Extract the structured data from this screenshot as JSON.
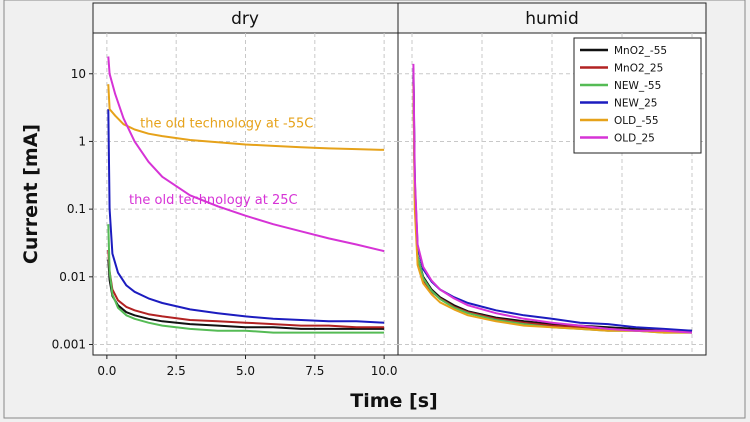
{
  "chart_data": {
    "type": "line",
    "panels": [
      {
        "title": "dry"
      },
      {
        "title": "humid"
      }
    ],
    "xlabel": "Time [s]",
    "ylabel": "Current [mA]",
    "xlim": [
      -0.5,
      10.5
    ],
    "ylim": [
      0.0007,
      40
    ],
    "yscale": "log",
    "grid": true,
    "xticks": [
      {
        "value": 0,
        "label": "0.0"
      },
      {
        "value": 2.5,
        "label": "2.5"
      },
      {
        "value": 5,
        "label": "5.0"
      },
      {
        "value": 7.5,
        "label": "7.5"
      },
      {
        "value": 10,
        "label": "10.0"
      }
    ],
    "yticks": [
      {
        "value": 10,
        "label": "10"
      },
      {
        "value": 1,
        "label": "1"
      },
      {
        "value": 0.1,
        "label": "0.1"
      },
      {
        "value": 0.01,
        "label": "0.01"
      },
      {
        "value": 0.001,
        "label": "0.001"
      }
    ],
    "legend_position": "top-right of humid panel",
    "series": [
      {
        "name": "MnO2_-55",
        "color": "#111111",
        "dry": {
          "x": [
            0.05,
            0.1,
            0.2,
            0.4,
            0.7,
            1,
            1.5,
            2,
            3,
            4,
            5,
            6,
            7,
            8,
            9,
            10
          ],
          "y": [
            0.018,
            0.009,
            0.0052,
            0.0038,
            0.003,
            0.0027,
            0.0024,
            0.0022,
            0.002,
            0.0019,
            0.0018,
            0.0018,
            0.0017,
            0.0017,
            0.0017,
            0.0017
          ]
        },
        "humid": {
          "x": [
            0.05,
            0.1,
            0.2,
            0.4,
            0.7,
            1,
            1.5,
            2,
            3,
            4,
            5,
            6,
            7,
            8,
            9,
            10
          ],
          "y": [
            9,
            0.2,
            0.02,
            0.01,
            0.0065,
            0.005,
            0.0038,
            0.0031,
            0.0025,
            0.0022,
            0.002,
            0.0019,
            0.0018,
            0.0017,
            0.0016,
            0.0016
          ]
        }
      },
      {
        "name": "MnO2_25",
        "color": "#b22222",
        "dry": {
          "x": [
            0.05,
            0.1,
            0.2,
            0.4,
            0.7,
            1,
            1.5,
            2,
            3,
            4,
            5,
            6,
            7,
            8,
            9,
            10
          ],
          "y": [
            0.025,
            0.012,
            0.0065,
            0.0045,
            0.0036,
            0.0032,
            0.0028,
            0.0026,
            0.0023,
            0.0022,
            0.0021,
            0.002,
            0.0019,
            0.0019,
            0.0018,
            0.0018
          ]
        },
        "humid": {
          "x": [
            0.05,
            0.1,
            0.2,
            0.4,
            0.7,
            1,
            1.5,
            2,
            3,
            4,
            5,
            6,
            7,
            8,
            9,
            10
          ],
          "y": [
            8,
            0.15,
            0.018,
            0.009,
            0.006,
            0.0048,
            0.0036,
            0.003,
            0.0024,
            0.0021,
            0.0019,
            0.0018,
            0.0017,
            0.0016,
            0.0016,
            0.0015
          ]
        }
      },
      {
        "name": "NEW_-55",
        "color": "#55bb55",
        "dry": {
          "x": [
            0.05,
            0.1,
            0.2,
            0.4,
            0.7,
            1,
            1.5,
            2,
            3,
            4,
            5,
            6,
            7,
            8,
            9,
            10
          ],
          "y": [
            0.06,
            0.012,
            0.0055,
            0.0035,
            0.0027,
            0.0024,
            0.0021,
            0.0019,
            0.0017,
            0.0016,
            0.0016,
            0.0015,
            0.0015,
            0.0015,
            0.0015,
            0.0015
          ]
        },
        "humid": {
          "x": [
            0.05,
            0.1,
            0.2,
            0.4,
            0.7,
            1,
            1.5,
            2,
            3,
            4,
            5,
            6,
            7,
            8,
            9,
            10
          ],
          "y": [
            10,
            0.18,
            0.02,
            0.0095,
            0.0062,
            0.0047,
            0.0035,
            0.0029,
            0.0023,
            0.002,
            0.0018,
            0.0017,
            0.0016,
            0.0016,
            0.0015,
            0.0015
          ]
        }
      },
      {
        "name": "NEW_25",
        "color": "#1c1cbf",
        "dry": {
          "x": [
            0.05,
            0.1,
            0.2,
            0.4,
            0.7,
            1,
            1.5,
            2,
            3,
            4,
            5,
            6,
            7,
            8,
            9,
            10
          ],
          "y": [
            3,
            0.1,
            0.022,
            0.0115,
            0.0075,
            0.006,
            0.0048,
            0.0041,
            0.0033,
            0.0029,
            0.0026,
            0.0024,
            0.0023,
            0.0022,
            0.0022,
            0.0021
          ]
        },
        "humid": {
          "x": [
            0.05,
            0.1,
            0.2,
            0.4,
            0.7,
            1,
            1.5,
            2,
            3,
            4,
            5,
            6,
            7,
            8,
            9,
            10
          ],
          "y": [
            12,
            0.25,
            0.028,
            0.013,
            0.0085,
            0.0065,
            0.005,
            0.0041,
            0.0032,
            0.0027,
            0.0024,
            0.0021,
            0.002,
            0.0018,
            0.0017,
            0.0016
          ]
        }
      },
      {
        "name": "OLD_-55",
        "color": "#e6a21a",
        "dry": {
          "x": [
            0.05,
            0.1,
            0.3,
            0.6,
            1,
            1.5,
            2,
            3,
            4,
            5,
            6,
            7,
            8,
            9,
            10
          ],
          "y": [
            7,
            3,
            2.4,
            1.8,
            1.5,
            1.3,
            1.2,
            1.05,
            0.97,
            0.9,
            0.86,
            0.82,
            0.79,
            0.77,
            0.75
          ]
        },
        "humid": {
          "x": [
            0.05,
            0.1,
            0.2,
            0.4,
            0.7,
            1,
            1.5,
            2,
            3,
            4,
            5,
            6,
            7,
            8,
            9,
            10
          ],
          "y": [
            7,
            0.1,
            0.015,
            0.008,
            0.0055,
            0.0042,
            0.0033,
            0.0027,
            0.0022,
            0.0019,
            0.0018,
            0.0017,
            0.0016,
            0.0016,
            0.0015,
            0.0015
          ]
        }
      },
      {
        "name": "OLD_25",
        "color": "#d633d6",
        "dry": {
          "x": [
            0.05,
            0.1,
            0.3,
            0.6,
            1,
            1.5,
            2,
            3,
            4,
            5,
            6,
            7,
            8,
            9,
            10
          ],
          "y": [
            18,
            10,
            5,
            2.2,
            1,
            0.5,
            0.3,
            0.16,
            0.11,
            0.08,
            0.06,
            0.047,
            0.037,
            0.03,
            0.024
          ]
        },
        "humid": {
          "x": [
            0.05,
            0.1,
            0.2,
            0.4,
            0.7,
            1,
            1.5,
            2,
            3,
            4,
            5,
            6,
            7,
            8,
            9,
            10
          ],
          "y": [
            14,
            0.3,
            0.03,
            0.014,
            0.0088,
            0.0065,
            0.0048,
            0.0038,
            0.0029,
            0.0024,
            0.0021,
            0.0019,
            0.0017,
            0.0016,
            0.0016,
            0.0015
          ]
        }
      }
    ],
    "annotations": [
      {
        "text": "the old technology at -55C",
        "panel": "dry",
        "x": 1.2,
        "y": 1.6,
        "color": "#e6a21a"
      },
      {
        "text": "the old technology at 25C",
        "panel": "dry",
        "x": 0.8,
        "y": 0.12,
        "color": "#d633d6"
      }
    ]
  }
}
